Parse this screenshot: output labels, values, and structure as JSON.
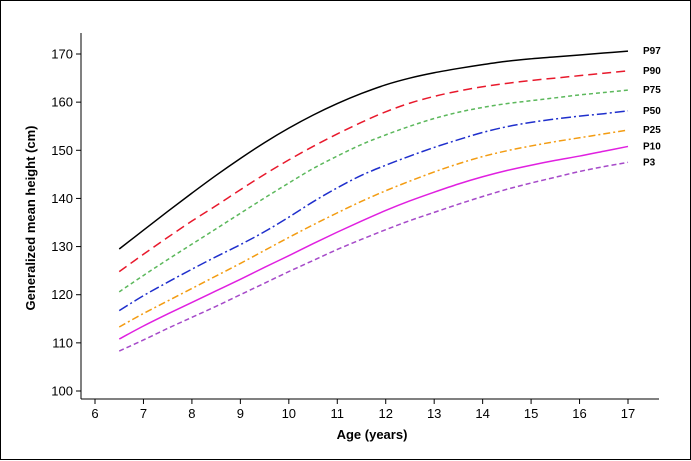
{
  "chart_data": {
    "type": "line",
    "title": "",
    "xlabel": "Age (years)",
    "ylabel": "Generalized mean height (cm)",
    "xlim": [
      6,
      17
    ],
    "ylim": [
      100,
      170
    ],
    "xticks": [
      6,
      7,
      8,
      9,
      10,
      11,
      12,
      13,
      14,
      15,
      16,
      17
    ],
    "yticks": [
      100,
      110,
      120,
      130,
      140,
      150,
      160,
      170
    ],
    "grid": false,
    "x": [
      6.5,
      7,
      7.5,
      8,
      8.5,
      9,
      9.5,
      10,
      10.5,
      11,
      11.5,
      12,
      12.5,
      13,
      13.5,
      14,
      14.5,
      15,
      15.5,
      16,
      16.5,
      17
    ],
    "series": [
      {
        "name": "P97",
        "color": "#000000",
        "dash": "",
        "values": [
          129.5,
          133.4,
          137.3,
          141.1,
          144.8,
          148.3,
          151.6,
          154.6,
          157.3,
          159.7,
          161.8,
          163.6,
          165.0,
          166.1,
          167.0,
          167.8,
          168.5,
          169.0,
          169.4,
          169.8,
          170.2,
          170.6
        ]
      },
      {
        "name": "P90",
        "color": "#e8192c",
        "dash": "9,5",
        "values": [
          124.8,
          128.4,
          131.9,
          135.3,
          138.5,
          141.8,
          145.0,
          148.0,
          150.8,
          153.4,
          155.8,
          158.0,
          159.8,
          161.2,
          162.3,
          163.2,
          163.9,
          164.5,
          165.0,
          165.5,
          166.0,
          166.5
        ]
      },
      {
        "name": "P75",
        "color": "#5cb85c",
        "dash": "4,3",
        "values": [
          120.6,
          124.0,
          127.3,
          130.5,
          133.7,
          136.9,
          140.1,
          143.2,
          146.2,
          148.8,
          151.2,
          153.2,
          155.0,
          156.6,
          157.9,
          158.9,
          159.7,
          160.3,
          160.9,
          161.5,
          162.0,
          162.5
        ]
      },
      {
        "name": "P50",
        "color": "#1f2fcc",
        "dash": "10,3,2,3",
        "values": [
          116.7,
          119.8,
          122.6,
          125.3,
          127.9,
          130.4,
          133.1,
          136.1,
          139.3,
          142.2,
          144.8,
          146.9,
          148.8,
          150.6,
          152.2,
          153.7,
          154.9,
          155.8,
          156.5,
          157.1,
          157.6,
          158.2
        ]
      },
      {
        "name": "P25",
        "color": "#f39c12",
        "dash": "7,3,2,3",
        "values": [
          113.3,
          116.1,
          118.7,
          121.3,
          123.9,
          126.5,
          129.2,
          131.9,
          134.5,
          137.0,
          139.4,
          141.6,
          143.6,
          145.5,
          147.2,
          148.7,
          149.9,
          150.9,
          151.8,
          152.6,
          153.4,
          154.2
        ]
      },
      {
        "name": "P10",
        "color": "#e020e0",
        "dash": "",
        "values": [
          110.8,
          113.5,
          116.0,
          118.4,
          120.8,
          123.2,
          125.7,
          128.1,
          130.6,
          133.0,
          135.3,
          137.5,
          139.5,
          141.3,
          143.0,
          144.5,
          145.8,
          146.9,
          147.9,
          148.8,
          149.8,
          150.8
        ]
      },
      {
        "name": "P3",
        "color": "#a64ac9",
        "dash": "5,3",
        "values": [
          108.3,
          110.6,
          113.0,
          115.3,
          117.6,
          120.0,
          122.4,
          124.8,
          127.1,
          129.4,
          131.5,
          133.5,
          135.4,
          137.1,
          138.8,
          140.4,
          141.9,
          143.2,
          144.4,
          145.6,
          146.6,
          147.5
        ]
      }
    ]
  }
}
